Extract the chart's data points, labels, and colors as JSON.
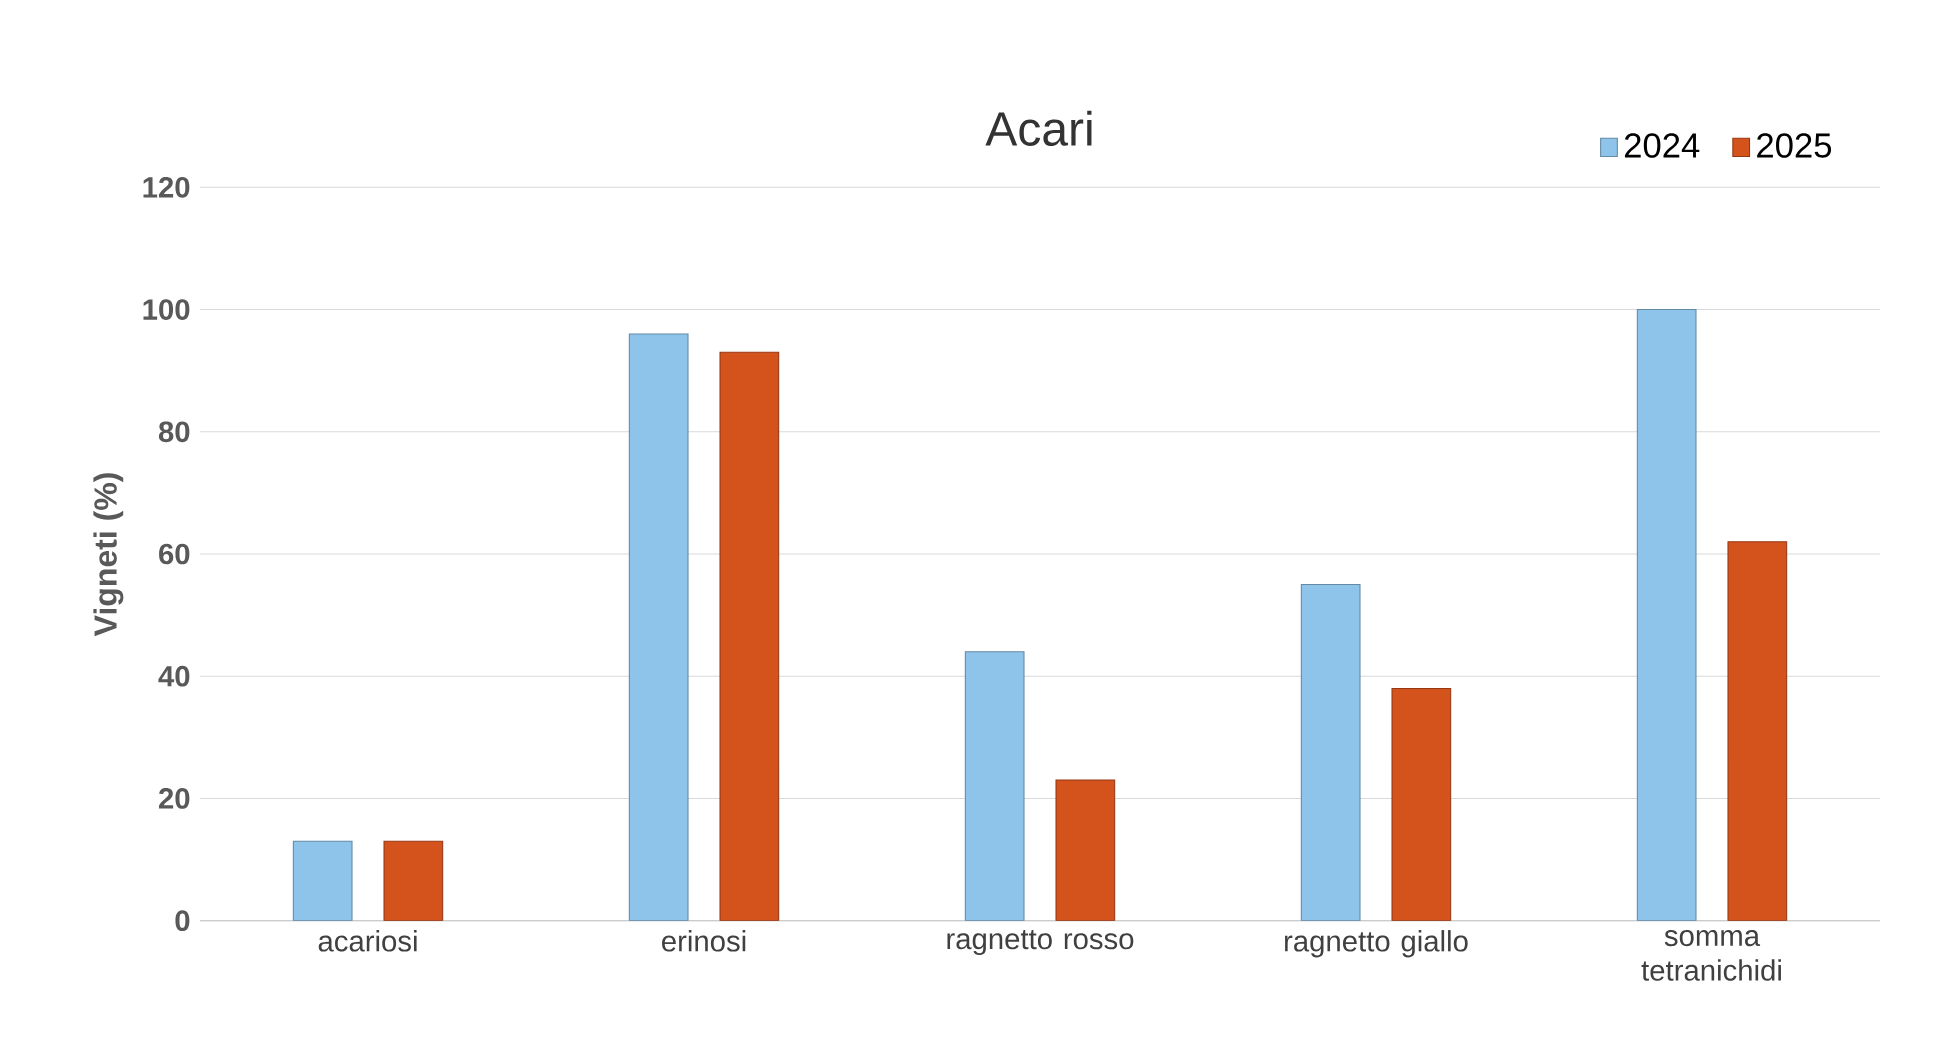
{
  "chart_data": {
    "type": "bar",
    "title": "Acari",
    "ylabel": "Vigneti (%)",
    "categories": [
      "acariosi",
      "erinosi",
      "ragnetto rosso",
      "ragnetto giallo",
      "somma tetranichidi"
    ],
    "series": [
      {
        "name": "2024",
        "color": "#8ec4ea",
        "values": [
          13,
          96,
          44,
          55,
          100
        ]
      },
      {
        "name": "2025",
        "color": "#d4521c",
        "values": [
          13,
          93,
          23,
          38,
          62
        ]
      }
    ],
    "ylim": [
      0,
      120
    ],
    "yticks": [
      0,
      20,
      40,
      60,
      80,
      100,
      120
    ],
    "grid": "y",
    "legend": "top right"
  }
}
